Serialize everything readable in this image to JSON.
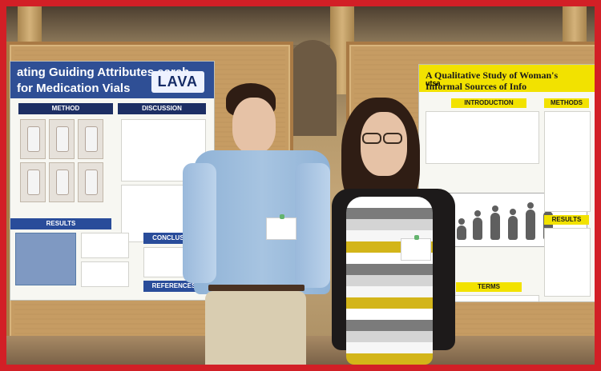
{
  "photo": {
    "scene": "Two people standing in front of research posters"
  },
  "left_poster": {
    "title": "ating Guiding Attributes earch for Medication Vials",
    "logo": "LAVA",
    "method_heading": "METHOD",
    "discussion_heading": "DISCUSSION",
    "results_heading": "RESULTS",
    "conclusion_heading": "CONCLUSION",
    "references_heading": "REFERENCES"
  },
  "right_poster": {
    "title": "A Qualitative Study of Woman's Informal Sources of Info",
    "logo": "utsa",
    "introduction_heading": "INTRODUCTION",
    "methods_heading": "METHODS",
    "results_heading": "RESULTS",
    "terms_heading": "TERMS"
  }
}
